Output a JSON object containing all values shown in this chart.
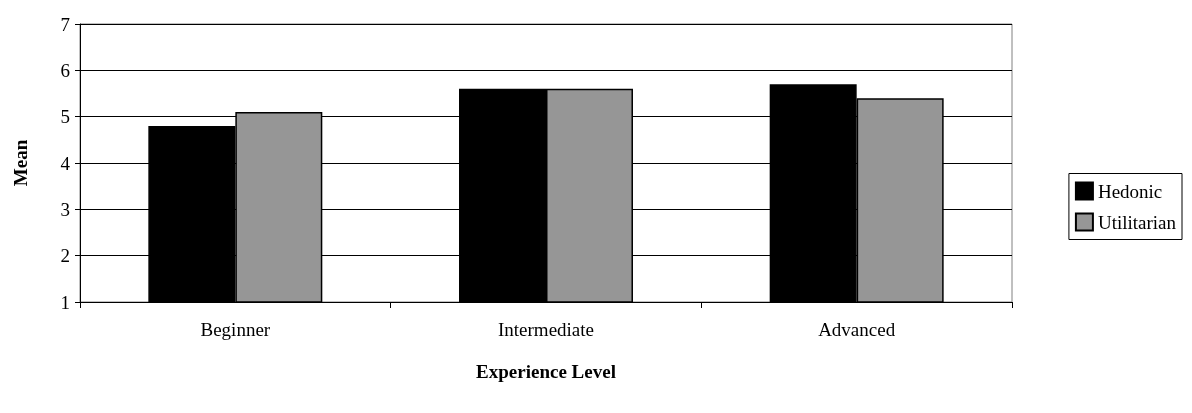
{
  "chart_data": {
    "type": "bar",
    "xlabel": "Experience Level",
    "ylabel": "Mean",
    "categories": [
      "Beginner",
      "Intermediate",
      "Advanced"
    ],
    "series": [
      {
        "name": "Hedonic",
        "color": "#000000",
        "values": [
          4.8,
          5.6,
          5.7
        ]
      },
      {
        "name": "Utilitarian",
        "color": "#969696",
        "values": [
          5.1,
          5.6,
          5.4
        ]
      }
    ],
    "ylim": [
      1,
      7
    ],
    "yticks": [
      1,
      2,
      3,
      4,
      5,
      6,
      7
    ],
    "grid": "y",
    "legend": "right"
  }
}
